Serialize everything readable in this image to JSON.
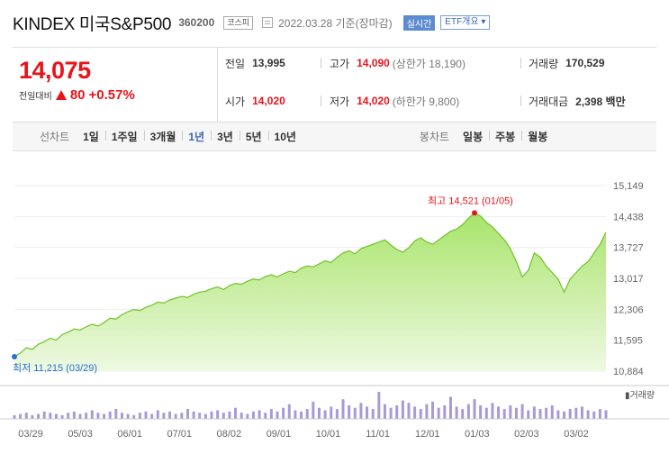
{
  "header": {
    "name": "KINDEX 미국S&P500",
    "code": "360200",
    "market_badge": "코스피",
    "date": "2022.03.28 기준(장마감)",
    "realtime_label": "실시간",
    "etf_label": "ETF개요 ▾"
  },
  "quote": {
    "price": "14,075",
    "change_label": "전일대비",
    "change": "80",
    "change_pct": "+0.57%",
    "prev_close_label": "전일",
    "prev_close": "13,995",
    "open_label": "시가",
    "open": "14,020",
    "high_label": "고가",
    "high": "14,090",
    "upper_limit": "(상한가 18,190)",
    "low_label": "저가",
    "low": "14,020",
    "lower_limit": "(하한가 9,800)",
    "volume_label": "거래량",
    "volume": "170,529",
    "amount_label": "거래대금",
    "amount": "2,398 백만"
  },
  "periods": {
    "line_label": "선차트",
    "line_items": [
      "1일",
      "1주일",
      "3개월",
      "1년",
      "3년",
      "5년",
      "10년"
    ],
    "selected": "1년",
    "candle_label": "봉차트",
    "candle_items": [
      "일봉",
      "주봉",
      "월봉"
    ]
  },
  "chart_data": {
    "type": "area",
    "y_ticks": [
      "15,149",
      "14,438",
      "13,727",
      "13,017",
      "12,306",
      "11,595",
      "10,884"
    ],
    "ylim": [
      10884,
      15149
    ],
    "x_ticks": [
      "03/29",
      "05/03",
      "06/01",
      "07/01",
      "08/02",
      "09/01",
      "10/01",
      "11/01",
      "12/01",
      "01/03",
      "02/03",
      "03/02"
    ],
    "high_label": "최고 14,521 (01/05)",
    "low_label": "최저 11,215 (03/29)",
    "volume_legend": "거래량",
    "values": [
      11215,
      11300,
      11420,
      11380,
      11500,
      11560,
      11640,
      11600,
      11720,
      11780,
      11850,
      11830,
      11900,
      11960,
      11920,
      12000,
      12100,
      12080,
      12180,
      12250,
      12300,
      12280,
      12350,
      12400,
      12470,
      12450,
      12520,
      12560,
      12600,
      12580,
      12650,
      12700,
      12720,
      12780,
      12820,
      12760,
      12850,
      12900,
      12880,
      12950,
      13000,
      12980,
      13060,
      13100,
      13050,
      13120,
      13180,
      13150,
      13250,
      13300,
      13280,
      13350,
      13420,
      13380,
      13500,
      13600,
      13650,
      13580,
      13700,
      13750,
      13800,
      13850,
      13900,
      13780,
      13680,
      13620,
      13720,
      13880,
      13950,
      13850,
      13800,
      13900,
      14000,
      14100,
      14150,
      14250,
      14400,
      14521,
      14450,
      14300,
      14200,
      14050,
      13900,
      13700,
      13400,
      13050,
      13200,
      13600,
      13500,
      13300,
      13150,
      13000,
      12700,
      13000,
      13150,
      13300,
      13400,
      13600,
      13800,
      14075
    ],
    "volumes": [
      3,
      4,
      5,
      3,
      4,
      6,
      5,
      4,
      3,
      5,
      6,
      4,
      5,
      7,
      5,
      4,
      6,
      8,
      5,
      4,
      3,
      5,
      6,
      4,
      7,
      5,
      6,
      4,
      5,
      8,
      6,
      5,
      4,
      6,
      7,
      5,
      6,
      9,
      5,
      4,
      6,
      7,
      5,
      8,
      6,
      9,
      12,
      7,
      6,
      8,
      14,
      9,
      7,
      10,
      8,
      16,
      11,
      9,
      13,
      10,
      8,
      22,
      12,
      9,
      11,
      15,
      13,
      10,
      8,
      12,
      14,
      9,
      11,
      18,
      10,
      8,
      12,
      16,
      11,
      9,
      13,
      10,
      8,
      11,
      9,
      12,
      7,
      10,
      8,
      9,
      11,
      7,
      6,
      8,
      9,
      10,
      7,
      6,
      8,
      7
    ]
  }
}
